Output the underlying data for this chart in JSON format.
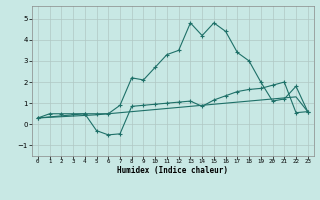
{
  "xlabel": "Humidex (Indice chaleur)",
  "ylabel": "",
  "xlim": [
    -0.5,
    23.5
  ],
  "ylim": [
    -1.5,
    5.6
  ],
  "xticks": [
    0,
    1,
    2,
    3,
    4,
    5,
    6,
    7,
    8,
    9,
    10,
    11,
    12,
    13,
    14,
    15,
    16,
    17,
    18,
    19,
    20,
    21,
    22,
    23
  ],
  "yticks": [
    -1,
    0,
    1,
    2,
    3,
    4,
    5
  ],
  "bg_color": "#c8e8e4",
  "grid_color": "#b0c8c4",
  "line_color": "#1e7068",
  "line1_x": [
    0,
    1,
    2,
    3,
    4,
    5,
    6,
    7,
    8,
    9,
    10,
    11,
    12,
    13,
    14,
    15,
    16,
    17,
    18,
    19,
    20,
    21,
    22,
    23
  ],
  "line1_y": [
    0.3,
    0.5,
    0.5,
    0.5,
    0.5,
    0.5,
    0.5,
    0.9,
    2.2,
    2.1,
    2.7,
    3.3,
    3.5,
    4.8,
    4.2,
    4.8,
    4.4,
    3.4,
    3.0,
    2.0,
    1.1,
    1.2,
    1.8,
    0.6
  ],
  "line2_x": [
    0,
    4,
    5,
    6,
    7,
    8,
    9,
    10,
    11,
    12,
    13,
    14,
    15,
    16,
    17,
    18,
    19,
    20,
    21,
    22,
    23
  ],
  "line2_y": [
    0.3,
    0.5,
    -0.3,
    -0.5,
    -0.45,
    0.85,
    0.9,
    0.95,
    1.0,
    1.05,
    1.1,
    0.85,
    1.15,
    1.35,
    1.55,
    1.65,
    1.7,
    1.85,
    2.0,
    0.55,
    0.6
  ],
  "line3_x": [
    0,
    5,
    22,
    23
  ],
  "line3_y": [
    0.3,
    0.45,
    1.3,
    0.6
  ]
}
